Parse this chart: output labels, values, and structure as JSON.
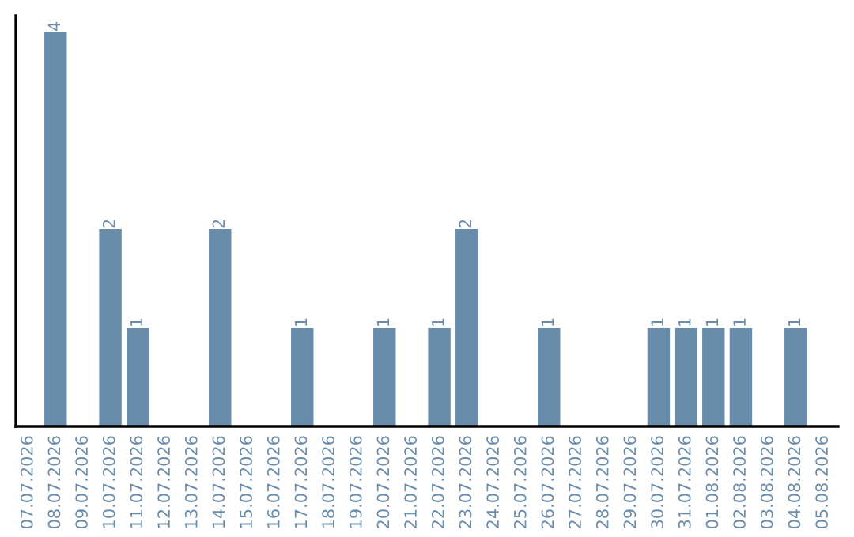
{
  "chart_data": {
    "type": "bar",
    "categories": [
      "07.07.2026",
      "08.07.2026",
      "09.07.2026",
      "10.07.2026",
      "11.07.2026",
      "12.07.2026",
      "13.07.2026",
      "14.07.2026",
      "15.07.2026",
      "16.07.2026",
      "17.07.2026",
      "18.07.2026",
      "19.07.2026",
      "20.07.2026",
      "21.07.2026",
      "22.07.2026",
      "23.07.2026",
      "24.07.2026",
      "25.07.2026",
      "26.07.2026",
      "27.07.2026",
      "28.07.2026",
      "29.07.2026",
      "30.07.2026",
      "31.07.2026",
      "01.08.2026",
      "02.08.2026",
      "03.08.2026",
      "04.08.2026",
      "05.08.2026"
    ],
    "values": [
      0,
      4,
      0,
      2,
      1,
      0,
      0,
      2,
      0,
      0,
      1,
      0,
      0,
      1,
      0,
      1,
      2,
      0,
      0,
      1,
      0,
      0,
      0,
      1,
      1,
      1,
      1,
      0,
      1,
      0
    ],
    "value_labels": [
      null,
      "4",
      null,
      "2",
      "1",
      null,
      null,
      "2",
      null,
      null,
      "1",
      null,
      null,
      "1",
      null,
      "1",
      "2",
      null,
      null,
      "1",
      null,
      null,
      null,
      "1",
      "1",
      "1",
      "1",
      null,
      "1",
      null
    ],
    "color": "#6a8cab",
    "tick_labels": "x",
    "grid": false,
    "legend": false
  }
}
